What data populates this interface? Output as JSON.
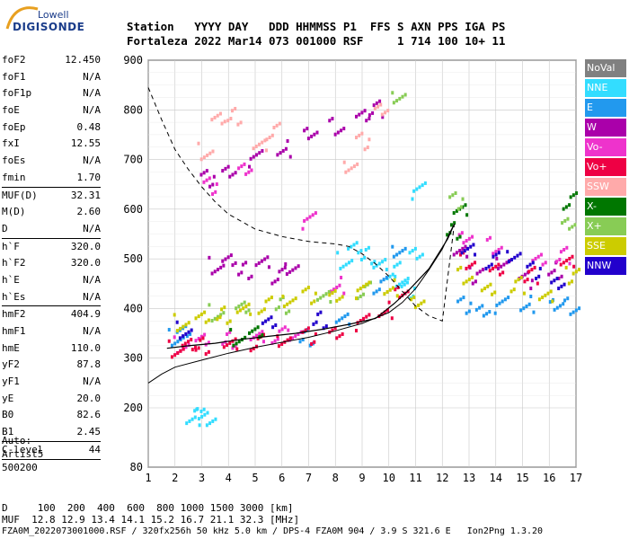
{
  "logo": {
    "top": "Lowell",
    "main": "DIGISONDE"
  },
  "header": {
    "line1": "Station   YYYY DAY   DDD HHMMSS P1  FFS S AXN PPS IGA PS",
    "line2": "Fortaleza 2022 Mar14 073 001000 RSF     1 714 100 10+ 11"
  },
  "params": [
    {
      "k": "foF2",
      "v": "12.450"
    },
    {
      "k": "foF1",
      "v": "N/A"
    },
    {
      "k": "foF1p",
      "v": "N/A"
    },
    {
      "k": "foE",
      "v": "N/A"
    },
    {
      "k": "foEp",
      "v": "0.48"
    },
    {
      "k": "fxI",
      "v": "12.55"
    },
    {
      "k": "foEs",
      "v": "N/A"
    },
    {
      "k": "fmin",
      "v": "1.70"
    },
    {
      "sep": true
    },
    {
      "k": "MUF(D)",
      "v": "32.31"
    },
    {
      "k": "M(D)",
      "v": "2.60"
    },
    {
      "k": "D",
      "v": "N/A"
    },
    {
      "sep": true
    },
    {
      "k": "h`F",
      "v": "320.0"
    },
    {
      "k": "h`F2",
      "v": "320.0"
    },
    {
      "k": "h`E",
      "v": "N/A"
    },
    {
      "k": "h`Es",
      "v": "N/A"
    },
    {
      "sep": true
    },
    {
      "k": "hmF2",
      "v": "404.9"
    },
    {
      "k": "hmF1",
      "v": "N/A"
    },
    {
      "k": "hmE",
      "v": "110.0"
    },
    {
      "k": "yF2",
      "v": "87.8"
    },
    {
      "k": "yF1",
      "v": "N/A"
    },
    {
      "k": "yE",
      "v": "20.0"
    },
    {
      "k": "B0",
      "v": "82.6"
    },
    {
      "k": "B1",
      "v": "2.45"
    },
    {
      "sep": true
    },
    {
      "k": "C-level",
      "v": "44"
    },
    {
      "sep": true
    }
  ],
  "misc": [
    "Auto:",
    "Artist5",
    "500200"
  ],
  "legend": [
    {
      "label": "NoVal",
      "color": "#808080"
    },
    {
      "label": "NNE",
      "color": "#33ddff"
    },
    {
      "label": "E",
      "color": "#2299ee"
    },
    {
      "label": "W",
      "color": "#aa00aa"
    },
    {
      "label": "Vo-",
      "color": "#ee33cc"
    },
    {
      "label": "Vo+",
      "color": "#ee0044"
    },
    {
      "label": "SSW",
      "color": "#ffaaaa"
    },
    {
      "label": "X-",
      "color": "#007700"
    },
    {
      "label": "X+",
      "color": "#88cc55"
    },
    {
      "label": "SSE",
      "color": "#cccc00"
    },
    {
      "label": "NNW",
      "color": "#2200cc"
    }
  ],
  "footer": {
    "line1": "D     100  200  400  600  800 1000 1500 3000 [km]",
    "line2": "MUF  12.8 12.9 13.4 14.1 15.2 16.7 21.1 32.3 [MHz]",
    "line3": "FZA0M_2022073001000.RSF / 320fx256h 50 kHz 5.0 km / DPS-4 FZA0M 904 / 3.9 S 321.6 E   Ion2Png 1.3.20"
  },
  "chart_data": {
    "type": "scatter",
    "title": "",
    "xlabel": "",
    "ylabel": "",
    "xlim": [
      1,
      17
    ],
    "ylim": [
      80,
      900
    ],
    "x_ticks": [
      1,
      2,
      3,
      4,
      5,
      6,
      7,
      8,
      9,
      10,
      11,
      12,
      13,
      14,
      15,
      16,
      17
    ],
    "y_ticks": [
      80,
      200,
      300,
      400,
      500,
      600,
      700,
      800,
      900
    ],
    "grid": true,
    "legend_position": "right",
    "series": [
      {
        "name": "NNE",
        "color": "#33ddff",
        "points": [
          [
            8.3,
            500
          ],
          [
            8.7,
            520
          ],
          [
            9.2,
            510
          ],
          [
            9.6,
            490
          ],
          [
            10.1,
            480
          ],
          [
            10.4,
            460
          ],
          [
            10.7,
            440
          ],
          [
            11.0,
            520
          ],
          [
            11.1,
            640
          ],
          [
            2.6,
            172
          ],
          [
            2.9,
            174
          ],
          [
            3.2,
            172
          ]
        ]
      },
      {
        "name": "E",
        "color": "#2299ee",
        "points": [
          [
            2.0,
            345
          ],
          [
            2.3,
            352
          ],
          [
            6.9,
            345
          ],
          [
            8.2,
            380
          ],
          [
            9.6,
            450
          ],
          [
            10.3,
            520
          ],
          [
            12.8,
            410
          ],
          [
            13.5,
            405
          ],
          [
            14.2,
            410
          ],
          [
            15.1,
            412
          ],
          [
            16.2,
            405
          ],
          [
            16.8,
            408
          ]
        ]
      },
      {
        "name": "W",
        "color": "#aa00aa",
        "points": [
          [
            3.5,
            490
          ],
          [
            4.0,
            495
          ],
          [
            4.6,
            480
          ],
          [
            5.2,
            495
          ],
          [
            5.8,
            470
          ],
          [
            6.3,
            485
          ],
          [
            3.2,
            665
          ],
          [
            4.0,
            685
          ],
          [
            5.0,
            705
          ],
          [
            6.0,
            725
          ],
          [
            7.0,
            750
          ],
          [
            8.0,
            770
          ],
          [
            9.0,
            790
          ],
          [
            9.5,
            805
          ],
          [
            12.6,
            520
          ],
          [
            13.2,
            470
          ],
          [
            14.2,
            500
          ],
          [
            15.1,
            460
          ],
          [
            16.2,
            480
          ]
        ]
      },
      {
        "name": "Vo-",
        "color": "#ee33cc",
        "points": [
          [
            2.2,
            330
          ],
          [
            3.0,
            335
          ],
          [
            4.0,
            340
          ],
          [
            5.0,
            345
          ],
          [
            5.8,
            350
          ],
          [
            6.4,
            352
          ],
          [
            3.3,
            650
          ],
          [
            4.6,
            690
          ],
          [
            7.0,
            580
          ],
          [
            8.0,
            450
          ],
          [
            12.8,
            540
          ],
          [
            13.9,
            530
          ],
          [
            15.6,
            500
          ],
          [
            16.5,
            510
          ]
        ]
      },
      {
        "name": "Vo+",
        "color": "#ee0044",
        "points": [
          [
            2.0,
            322
          ],
          [
            2.5,
            325
          ],
          [
            3.0,
            328
          ],
          [
            4.0,
            330
          ],
          [
            5.0,
            335
          ],
          [
            6.0,
            340
          ],
          [
            7.0,
            348
          ],
          [
            8.0,
            360
          ],
          [
            9.0,
            375
          ],
          [
            9.8,
            400
          ],
          [
            10.4,
            430
          ],
          [
            12.9,
            500
          ],
          [
            14.0,
            480
          ],
          [
            15.3,
            470
          ],
          [
            16.6,
            500
          ]
        ]
      },
      {
        "name": "SSW",
        "color": "#ffaaaa",
        "points": [
          [
            3.1,
            720
          ],
          [
            3.6,
            780
          ],
          [
            4.2,
            790
          ],
          [
            5.1,
            730
          ],
          [
            5.6,
            760
          ],
          [
            8.5,
            690
          ],
          [
            9.0,
            740
          ],
          [
            9.7,
            810
          ]
        ]
      },
      {
        "name": "X-",
        "color": "#007700",
        "points": [
          [
            4.3,
            345
          ],
          [
            5.0,
            350
          ],
          [
            12.4,
            560
          ],
          [
            12.6,
            600
          ],
          [
            16.7,
            620
          ]
        ]
      },
      {
        "name": "X+",
        "color": "#88cc55",
        "points": [
          [
            3.5,
            395
          ],
          [
            4.5,
            400
          ],
          [
            6.0,
            410
          ],
          [
            7.5,
            425
          ],
          [
            9.0,
            440
          ],
          [
            10.3,
            830
          ],
          [
            12.5,
            620
          ],
          [
            16.7,
            580
          ]
        ]
      },
      {
        "name": "SSE",
        "color": "#cccc00",
        "points": [
          [
            2.2,
            375
          ],
          [
            3.0,
            380
          ],
          [
            3.8,
            390
          ],
          [
            4.5,
            400
          ],
          [
            5.3,
            410
          ],
          [
            6.2,
            420
          ],
          [
            7.0,
            430
          ],
          [
            8.0,
            435
          ],
          [
            9.0,
            440
          ],
          [
            10.0,
            445
          ],
          [
            11.0,
            410
          ],
          [
            12.8,
            470
          ],
          [
            13.7,
            440
          ],
          [
            14.8,
            450
          ],
          [
            15.8,
            430
          ],
          [
            16.8,
            470
          ]
        ]
      },
      {
        "name": "NNW",
        "color": "#2200cc",
        "points": [
          [
            2.3,
            360
          ],
          [
            5.5,
            370
          ],
          [
            7.4,
            380
          ],
          [
            12.9,
            520
          ],
          [
            13.8,
            500
          ],
          [
            14.6,
            510
          ],
          [
            15.4,
            480
          ],
          [
            16.3,
            460
          ]
        ]
      }
    ],
    "curves": {
      "profile_solid": [
        [
          1.0,
          250
        ],
        [
          1.5,
          268
        ],
        [
          2,
          282
        ],
        [
          3,
          296
        ],
        [
          4,
          310
        ],
        [
          5,
          322
        ],
        [
          6,
          332
        ],
        [
          7,
          342
        ],
        [
          8,
          355
        ],
        [
          9,
          370
        ],
        [
          10,
          392
        ],
        [
          10.5,
          412
        ],
        [
          11,
          440
        ],
        [
          11.5,
          478
        ],
        [
          12,
          520
        ],
        [
          12.3,
          555
        ],
        [
          12.45,
          570
        ]
      ],
      "profile_dashed": [
        [
          1.0,
          845
        ],
        [
          1.5,
          780
        ],
        [
          2,
          720
        ],
        [
          2.5,
          680
        ],
        [
          3,
          645
        ],
        [
          3.5,
          615
        ],
        [
          4,
          590
        ],
        [
          5,
          560
        ],
        [
          6,
          545
        ],
        [
          7,
          535
        ],
        [
          8,
          530
        ],
        [
          8.5,
          525
        ],
        [
          9,
          510
        ],
        [
          9.5,
          490
        ],
        [
          10,
          465
        ],
        [
          10.5,
          435
        ],
        [
          11,
          405
        ],
        [
          11.5,
          385
        ],
        [
          12,
          375
        ],
        [
          12.45,
          570
        ]
      ],
      "trace": [
        [
          1.7,
          320
        ],
        [
          2.5,
          325
        ],
        [
          3.5,
          330
        ],
        [
          4.5,
          338
        ],
        [
          5.5,
          344
        ],
        [
          6.5,
          350
        ],
        [
          7.5,
          358
        ],
        [
          8.5,
          368
        ],
        [
          9.5,
          380
        ],
        [
          10.2,
          410
        ],
        [
          10.8,
          440
        ],
        [
          11.5,
          480
        ],
        [
          12.2,
          540
        ],
        [
          12.45,
          570
        ]
      ]
    }
  }
}
